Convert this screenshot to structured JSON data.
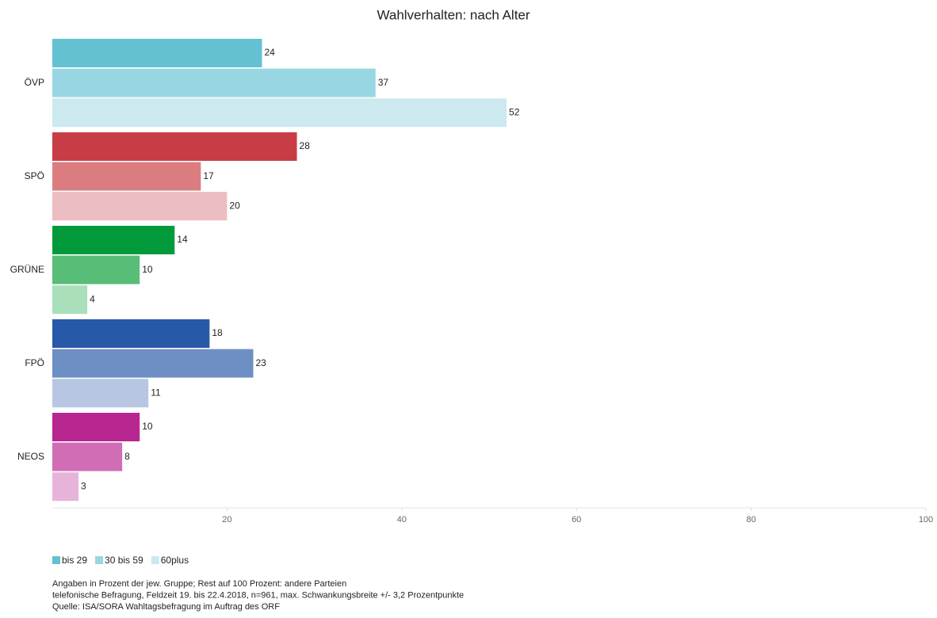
{
  "chart_data": {
    "type": "hbar",
    "title": "Wahlverhalten: nach Alter",
    "categories": [
      "ÖVP",
      "SPÖ",
      "GRÜNE",
      "FPÖ",
      "NEOS"
    ],
    "series": [
      {
        "name": "bis 29",
        "color": "#63c1d1",
        "colors": [
          "#63c1d1",
          "#c83c46",
          "#029a3a",
          "#2858a8",
          "#b8268f"
        ],
        "values": [
          24,
          28,
          14,
          18,
          10
        ]
      },
      {
        "name": "30 bis 59",
        "color": "#98d6e2",
        "colors": [
          "#98d6e2",
          "#db7d80",
          "#57bd77",
          "#6e8fc4",
          "#d06db5"
        ],
        "values": [
          37,
          17,
          10,
          23,
          8
        ]
      },
      {
        "name": "60plus",
        "color": "#cbe9ef",
        "colors": [
          "#cbe9ef",
          "#ecbdc1",
          "#aadfbc",
          "#b7c7e2",
          "#e6b4da"
        ],
        "values": [
          52,
          20,
          4,
          11,
          3
        ]
      }
    ],
    "xlim": [
      0,
      100
    ],
    "xticks": [
      20,
      40,
      60,
      80,
      100
    ],
    "notes": [
      "Angaben in Prozent der jew. Gruppe; Rest auf 100 Prozent: andere Parteien",
      "telefonische Befragung, Feldzeit 19. bis 22.4.2018, n=961, max. Schwankungsbreite +/- 3,2 Prozentpunkte",
      "Quelle: ISA/SORA Wahltagsbefragung im Auftrag des ORF"
    ]
  }
}
